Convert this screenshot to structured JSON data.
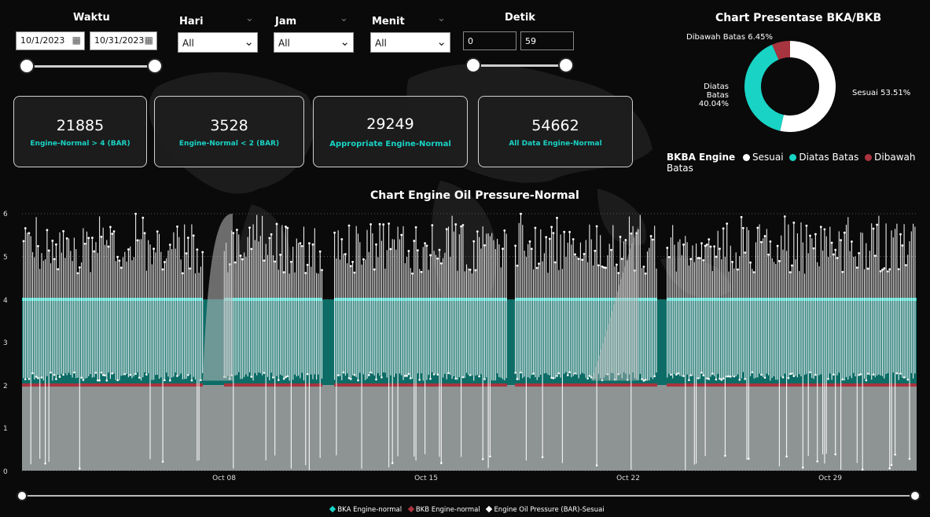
{
  "filters": {
    "waktu": {
      "label": "Waktu",
      "start": "10/1/2023",
      "end": "10/31/2023"
    },
    "hari": {
      "label": "Hari",
      "value": "All"
    },
    "jam": {
      "label": "Jam",
      "value": "All"
    },
    "menit": {
      "label": "Menit",
      "value": "All"
    },
    "detik": {
      "label": "Detik",
      "min": "0",
      "max": "59"
    }
  },
  "kpis": [
    {
      "value": "21885",
      "label": "Engine-Normal > 4 (BAR)"
    },
    {
      "value": "3528",
      "label": "Engine-Normal < 2 (BAR)"
    },
    {
      "value": "29249",
      "label": "Appropriate Engine-Normal"
    },
    {
      "value": "54662",
      "label": "All Data Engine-Normal"
    }
  ],
  "donut": {
    "title": "Chart Presentase BKA/BKB",
    "legend_title": "BKBA Engine",
    "slices": [
      {
        "name": "Sesuai",
        "percent": 53.51,
        "label": "Sesuai 53.51%",
        "color": "#ffffff"
      },
      {
        "name": "Diatas Batas",
        "percent": 40.04,
        "label_line1": "Diatas Batas",
        "label_line2": "40.04%",
        "color": "#19d3c5"
      },
      {
        "name": "Dibawah Batas",
        "percent": 6.45,
        "label": "Dibawah Batas 6.45%",
        "color": "#a8343f"
      }
    ]
  },
  "chart_data": {
    "type": "line",
    "title": "Chart Engine Oil Pressure-Normal",
    "y_ticks": [
      "0",
      "1",
      "2",
      "3",
      "4",
      "5",
      "6"
    ],
    "ylim": [
      0,
      6
    ],
    "x_ticks": [
      "Oct 08",
      "Oct 15",
      "Oct 22",
      "Oct 29"
    ],
    "series": [
      {
        "name": "BKA Engine-normal",
        "constant": 4,
        "color": "#19d3c5"
      },
      {
        "name": "BKB Engine-normal",
        "constant": 2,
        "color": "#a8343f"
      },
      {
        "name": "Engine Oil Pressure (BAR)-Sesuai",
        "range": [
          0,
          6
        ],
        "color": "#ffffff"
      }
    ],
    "legend_placement": "bottom"
  }
}
